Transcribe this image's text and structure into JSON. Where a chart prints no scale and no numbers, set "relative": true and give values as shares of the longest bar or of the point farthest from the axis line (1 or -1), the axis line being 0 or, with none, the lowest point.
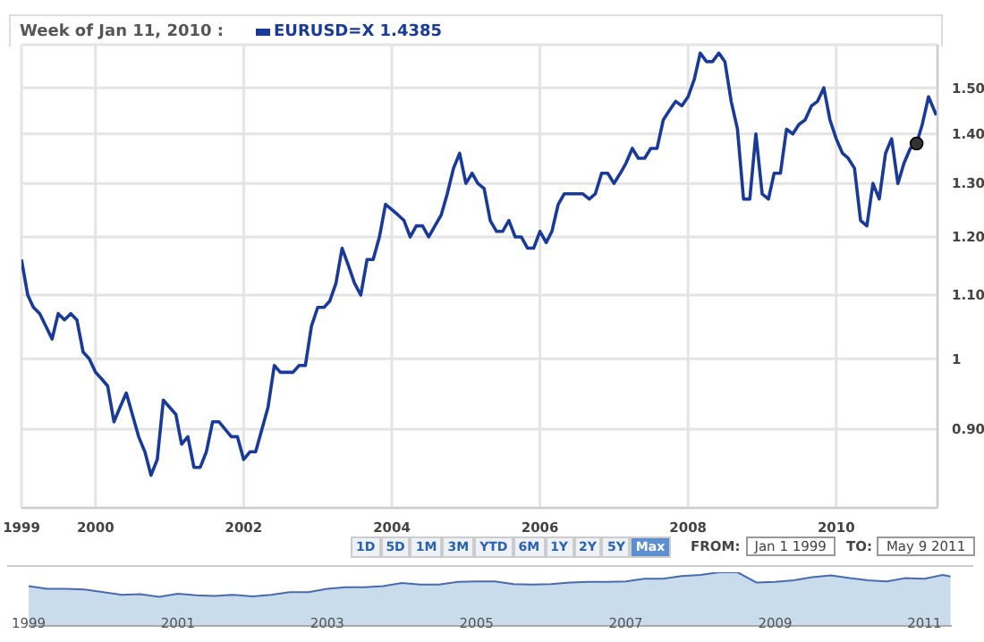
{
  "chart_data": [
    {
      "type": "line",
      "title": "Week of Jan 11, 2010 :",
      "x": [
        "1999-01",
        "1999-02",
        "1999-03",
        "1999-04",
        "1999-05",
        "1999-06",
        "1999-07",
        "1999-08",
        "1999-09",
        "1999-10",
        "1999-11",
        "1999-12",
        "2000-01",
        "2000-02",
        "2000-03",
        "2000-04",
        "2000-05",
        "2000-06",
        "2000-07",
        "2000-08",
        "2000-09",
        "2000-10",
        "2000-11",
        "2000-12",
        "2001-01",
        "2001-02",
        "2001-03",
        "2001-04",
        "2001-05",
        "2001-06",
        "2001-07",
        "2001-08",
        "2001-09",
        "2001-10",
        "2001-11",
        "2001-12",
        "2002-01",
        "2002-02",
        "2002-03",
        "2002-04",
        "2002-05",
        "2002-06",
        "2002-07",
        "2002-08",
        "2002-09",
        "2002-10",
        "2002-11",
        "2002-12",
        "2003-01",
        "2003-02",
        "2003-03",
        "2003-04",
        "2003-05",
        "2003-06",
        "2003-07",
        "2003-08",
        "2003-09",
        "2003-10",
        "2003-11",
        "2003-12",
        "2004-01",
        "2004-02",
        "2004-03",
        "2004-04",
        "2004-05",
        "2004-06",
        "2004-07",
        "2004-08",
        "2004-09",
        "2004-10",
        "2004-11",
        "2004-12",
        "2005-01",
        "2005-02",
        "2005-03",
        "2005-04",
        "2005-05",
        "2005-06",
        "2005-07",
        "2005-08",
        "2005-09",
        "2005-10",
        "2005-11",
        "2005-12",
        "2006-01",
        "2006-02",
        "2006-03",
        "2006-04",
        "2006-05",
        "2006-06",
        "2006-07",
        "2006-08",
        "2006-09",
        "2006-10",
        "2006-11",
        "2006-12",
        "2007-01",
        "2007-02",
        "2007-03",
        "2007-04",
        "2007-05",
        "2007-06",
        "2007-07",
        "2007-08",
        "2007-09",
        "2007-10",
        "2007-11",
        "2007-12",
        "2008-01",
        "2008-02",
        "2008-03",
        "2008-04",
        "2008-05",
        "2008-06",
        "2008-07",
        "2008-08",
        "2008-09",
        "2008-10",
        "2008-11",
        "2008-12",
        "2009-01",
        "2009-02",
        "2009-03",
        "2009-04",
        "2009-05",
        "2009-06",
        "2009-07",
        "2009-08",
        "2009-09",
        "2009-10",
        "2009-11",
        "2009-12",
        "2010-01",
        "2010-02",
        "2010-03",
        "2010-04",
        "2010-05",
        "2010-06",
        "2010-07",
        "2010-08",
        "2010-09",
        "2010-10",
        "2010-11",
        "2010-12",
        "2011-01",
        "2011-02",
        "2011-03",
        "2011-04",
        "2011-05-09"
      ],
      "series": [
        {
          "name": "EURUSD=X 1.4385",
          "color": "#1a3a9a",
          "values": [
            1.16,
            1.1,
            1.08,
            1.07,
            1.05,
            1.03,
            1.07,
            1.06,
            1.07,
            1.06,
            1.01,
            1.0,
            0.98,
            0.97,
            0.96,
            0.91,
            0.93,
            0.95,
            0.92,
            0.89,
            0.87,
            0.84,
            0.86,
            0.94,
            0.93,
            0.92,
            0.88,
            0.89,
            0.85,
            0.85,
            0.87,
            0.91,
            0.91,
            0.9,
            0.89,
            0.89,
            0.86,
            0.87,
            0.87,
            0.9,
            0.93,
            0.99,
            0.98,
            0.98,
            0.98,
            0.99,
            0.99,
            1.05,
            1.08,
            1.08,
            1.09,
            1.12,
            1.18,
            1.15,
            1.12,
            1.1,
            1.16,
            1.16,
            1.2,
            1.26,
            1.25,
            1.24,
            1.23,
            1.2,
            1.22,
            1.22,
            1.2,
            1.22,
            1.24,
            1.28,
            1.33,
            1.36,
            1.3,
            1.32,
            1.3,
            1.29,
            1.23,
            1.21,
            1.21,
            1.23,
            1.2,
            1.2,
            1.18,
            1.18,
            1.21,
            1.19,
            1.21,
            1.26,
            1.28,
            1.28,
            1.28,
            1.28,
            1.27,
            1.28,
            1.32,
            1.32,
            1.3,
            1.32,
            1.34,
            1.37,
            1.35,
            1.35,
            1.37,
            1.37,
            1.43,
            1.45,
            1.47,
            1.46,
            1.48,
            1.52,
            1.58,
            1.56,
            1.56,
            1.58,
            1.56,
            1.47,
            1.41,
            1.27,
            1.27,
            1.4,
            1.28,
            1.27,
            1.32,
            1.32,
            1.41,
            1.4,
            1.42,
            1.43,
            1.46,
            1.47,
            1.5,
            1.43,
            1.39,
            1.36,
            1.35,
            1.33,
            1.23,
            1.22,
            1.3,
            1.27,
            1.36,
            1.39,
            1.3,
            1.34,
            1.37,
            1.38,
            1.42,
            1.48,
            1.44
          ]
        },
        {
          "type": "scatter",
          "color": "#333333",
          "marker": "circle",
          "x": [
            "2011-02"
          ],
          "values": [
            1.38
          ]
        }
      ],
      "xlim": [
        "1999",
        "2011-05-15"
      ],
      "xticks": [
        "1999",
        "2000",
        "2002",
        "2004",
        "2006",
        "2008",
        "2010"
      ],
      "ylim": [
        0.8,
        1.6
      ],
      "yticks": [
        {
          "value": 0.9,
          "label": "0.90"
        },
        1,
        {
          "value": 1.1,
          "label": "1.10"
        },
        {
          "value": 1.2,
          "label": "1.20"
        },
        {
          "value": 1.3,
          "label": "1.30"
        },
        {
          "value": 1.4,
          "label": "1.40"
        },
        {
          "value": 1.5,
          "label": "1.50"
        }
      ],
      "log": "y",
      "grid": true,
      "legend": "top left",
      "marker": "none",
      "line_style": "solid",
      "annotations": [
        "1D",
        "5D",
        "1M",
        "3M",
        "YTD",
        "6M",
        "1Y",
        "2Y",
        "5Y",
        "Max",
        "FROM:",
        "Jan 1 1999",
        "TO:",
        "May 9 2011"
      ]
    },
    {
      "type": "area",
      "relative": true,
      "x": [
        "1999-01",
        "1999-04",
        "1999-07",
        "1999-10",
        "2000-01",
        "2000-04",
        "2000-07",
        "2000-10",
        "2001-01",
        "2001-04",
        "2001-07",
        "2001-10",
        "2002-01",
        "2002-04",
        "2002-07",
        "2002-10",
        "2003-01",
        "2003-04",
        "2003-07",
        "2003-10",
        "2004-01",
        "2004-04",
        "2004-07",
        "2004-10",
        "2005-01",
        "2005-04",
        "2005-07",
        "2005-10",
        "2006-01",
        "2006-04",
        "2006-07",
        "2006-10",
        "2007-01",
        "2007-04",
        "2007-07",
        "2007-10",
        "2008-01",
        "2008-04",
        "2008-07",
        "2008-10",
        "2009-01",
        "2009-04",
        "2009-07",
        "2009-10",
        "2010-01",
        "2010-04",
        "2010-07",
        "2010-10",
        "2011-01",
        "2011-04",
        "2011-05-09"
      ],
      "series": [
        {
          "color": "#4a6ab0",
          "values": [
            0.74,
            0.69,
            0.69,
            0.68,
            0.63,
            0.58,
            0.59,
            0.54,
            0.6,
            0.57,
            0.56,
            0.58,
            0.55,
            0.58,
            0.63,
            0.63,
            0.69,
            0.72,
            0.72,
            0.74,
            0.8,
            0.77,
            0.77,
            0.82,
            0.83,
            0.83,
            0.78,
            0.77,
            0.78,
            0.81,
            0.82,
            0.82,
            0.83,
            0.88,
            0.88,
            0.93,
            0.95,
            1,
            1,
            0.81,
            0.82,
            0.85,
            0.91,
            0.94,
            0.89,
            0.85,
            0.83,
            0.89,
            0.88,
            0.95,
            0.92
          ]
        }
      ],
      "xlim": [
        "1999",
        "2011-05-15"
      ],
      "xticks": [
        "1999",
        "2001",
        "2003",
        "2005",
        "2007",
        "2009",
        "2011"
      ],
      "tick_labels": "x"
    }
  ]
}
